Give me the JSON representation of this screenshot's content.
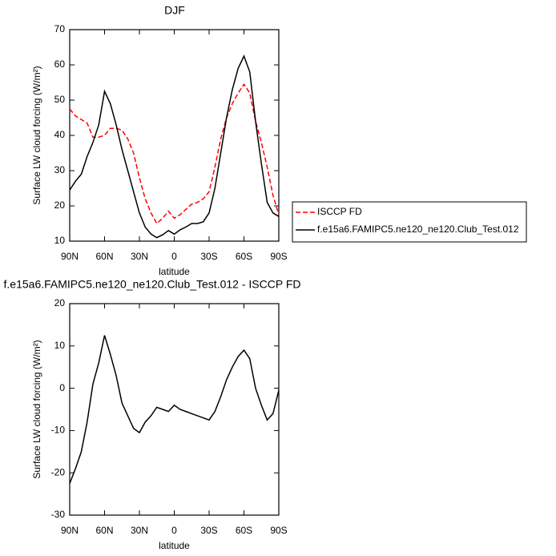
{
  "chart_data": [
    {
      "type": "line",
      "title": "DJF",
      "xlabel": "latitude",
      "ylabel": "Surface LW cloud forcing (W/m²)",
      "x": [
        90,
        85,
        80,
        75,
        70,
        65,
        60,
        55,
        50,
        45,
        40,
        35,
        30,
        25,
        20,
        15,
        10,
        5,
        0,
        -5,
        -10,
        -15,
        -20,
        -25,
        -30,
        -35,
        -40,
        -45,
        -50,
        -55,
        -60,
        -65,
        -70,
        -75,
        -80,
        -85,
        -90
      ],
      "series": [
        {
          "name": "ISCCP FD",
          "color": "#ff0000",
          "dashed": true,
          "values": [
            47.5,
            45.5,
            44.5,
            43.5,
            39.5,
            39.5,
            40,
            42,
            42,
            41.5,
            39,
            35,
            28,
            22,
            18,
            15,
            16.5,
            18.5,
            16.5,
            17.5,
            19,
            20.5,
            21,
            22,
            24,
            31,
            39,
            45,
            49,
            52,
            54.5,
            52,
            44,
            38,
            31,
            23,
            17.5
          ]
        },
        {
          "name": "f.e15a6.FAMIPC5.ne120_ne120.Club_Test.012",
          "color": "#000000",
          "dashed": false,
          "values": [
            24.5,
            27,
            29,
            34,
            38,
            43,
            52.5,
            49,
            43,
            36,
            30,
            24,
            18,
            14,
            12,
            11,
            11.8,
            13,
            12,
            13.2,
            14,
            15,
            15,
            15.5,
            18,
            25,
            35,
            45,
            53,
            59,
            62.5,
            58,
            44,
            32,
            21,
            18,
            17
          ]
        }
      ],
      "xlim": [
        90,
        -90
      ],
      "xticks": [
        {
          "value": 90,
          "label": "90N"
        },
        {
          "value": 60,
          "label": "60N"
        },
        {
          "value": 30,
          "label": "30N"
        },
        0,
        {
          "value": -30,
          "label": "30S"
        },
        {
          "value": -60,
          "label": "60S"
        },
        {
          "value": -90,
          "label": "90S"
        }
      ],
      "ylim": [
        10,
        70
      ],
      "yticks": [
        10,
        20,
        30,
        40,
        50,
        60,
        70
      ],
      "legend": "right"
    },
    {
      "type": "line",
      "title": "f.e15a6.FAMIPC5.ne120_ne120.Club_Test.012 - ISCCP FD",
      "xlabel": "latitude",
      "ylabel": "Surface LW cloud forcing (W/m²)",
      "x": [
        90,
        85,
        80,
        75,
        70,
        65,
        60,
        55,
        50,
        45,
        40,
        35,
        30,
        25,
        20,
        15,
        10,
        5,
        0,
        -5,
        -10,
        -15,
        -20,
        -25,
        -30,
        -35,
        -40,
        -45,
        -50,
        -55,
        -60,
        -65,
        -70,
        -75,
        -80,
        -85,
        -90
      ],
      "series": [
        {
          "color": "#000000",
          "dashed": false,
          "values": [
            -22.5,
            -19,
            -15,
            -8,
            1,
            6,
            12.5,
            8,
            3,
            -3.5,
            -6.5,
            -9.5,
            -10.5,
            -8,
            -6.5,
            -4.5,
            -5,
            -5.5,
            -4,
            -5,
            -5.5,
            -6,
            -6.5,
            -7,
            -7.5,
            -5.5,
            -2,
            2,
            5,
            7.5,
            9,
            7,
            0,
            -4,
            -7.5,
            -6,
            -0.5
          ]
        }
      ],
      "xlim": [
        90,
        -90
      ],
      "xticks": [
        {
          "value": 90,
          "label": "90N"
        },
        {
          "value": 60,
          "label": "60N"
        },
        {
          "value": 30,
          "label": "30N"
        },
        0,
        {
          "value": -30,
          "label": "30S"
        },
        {
          "value": -60,
          "label": "60S"
        },
        {
          "value": -90,
          "label": "90S"
        }
      ],
      "ylim": [
        -30,
        20
      ],
      "yticks": [
        -30,
        -20,
        -10,
        0,
        10,
        20
      ]
    }
  ]
}
